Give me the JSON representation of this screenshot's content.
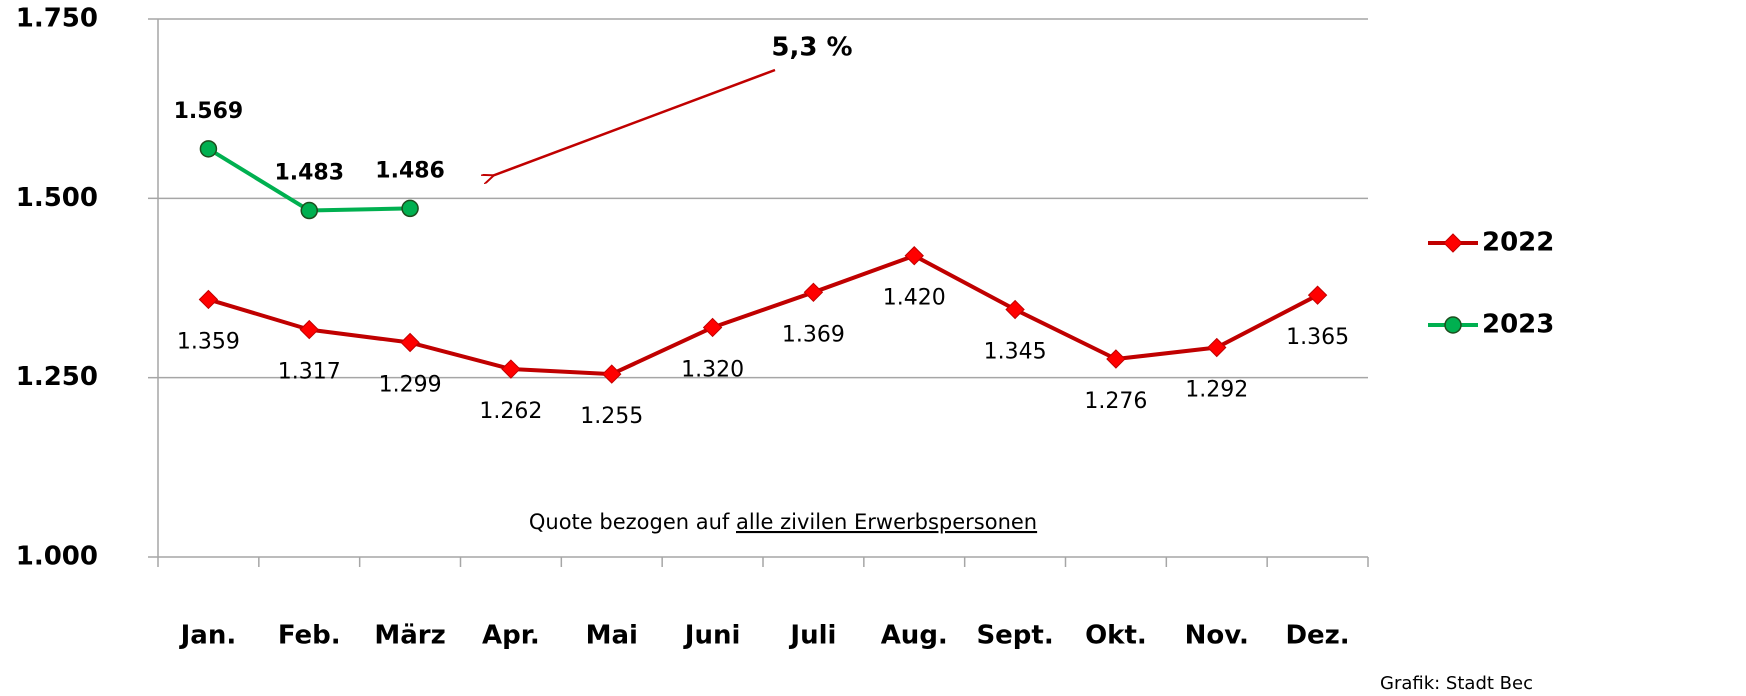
{
  "chart_data": {
    "type": "line",
    "categories": [
      "Jan.",
      "Feb.",
      "März",
      "Apr.",
      "Mai",
      "Juni",
      "Juli",
      "Aug.",
      "Sept.",
      "Okt.",
      "Nov.",
      "Dez."
    ],
    "series": [
      {
        "name": "2022",
        "color": "#c00000",
        "marker_color": "#ff0000",
        "marker": "diamond",
        "values": [
          1359,
          1317,
          1299,
          1262,
          1255,
          1320,
          1369,
          1420,
          1345,
          1276,
          1292,
          1365
        ],
        "value_labels": [
          "1.359",
          "1.317",
          "1.299",
          "1.262",
          "1.255",
          "1.320",
          "1.369",
          "1.420",
          "1.345",
          "1.276",
          "1.292",
          "1.365"
        ]
      },
      {
        "name": "2023",
        "color": "#00b050",
        "marker_color": "#00b050",
        "marker": "circle",
        "values": [
          1569,
          1483,
          1486,
          null,
          null,
          null,
          null,
          null,
          null,
          null,
          null,
          null
        ],
        "value_labels": [
          "1.569",
          "1.483",
          "1.486",
          null,
          null,
          null,
          null,
          null,
          null,
          null,
          null,
          null
        ]
      }
    ],
    "ylim": [
      1000,
      1750
    ],
    "yticks": [
      {
        "value": 1000,
        "label": "1.000"
      },
      {
        "value": 1250,
        "label": "1.250"
      },
      {
        "value": 1500,
        "label": "1.500"
      },
      {
        "value": 1750,
        "label": "1.750"
      }
    ],
    "grid": true,
    "legend": "right",
    "annotations": {
      "change": "5,3 %",
      "note": "Quote bezogen auf ",
      "note_underlined": "alle zivilen Erwerbspersonen",
      "source": "Grafik: Stadt Bec"
    }
  }
}
